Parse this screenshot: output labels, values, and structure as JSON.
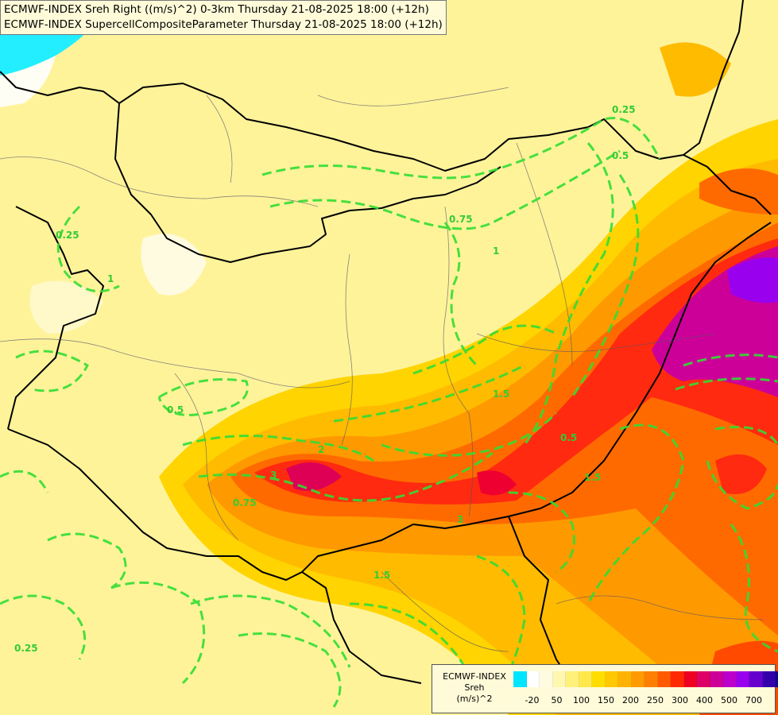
{
  "titles": {
    "line1": "ECMWF-INDEX Sreh Right ((m/s)^2) 0-3km Thursday 21-08-2025 18:00 (+12h)",
    "line2": "ECMWF-INDEX SupercellCompositeParameter Thursday 21-08-2025 18:00 (+12h)"
  },
  "legend": {
    "name_line1": "ECMWF-INDEX",
    "name_line2": "Sreh",
    "name_line3": "(m/s)^2",
    "colors": [
      "#00e5ff",
      "#ffffff",
      "#fffbe0",
      "#fff6b0",
      "#fff07a",
      "#ffe94a",
      "#ffdd00",
      "#ffc800",
      "#ffb300",
      "#ff9b00",
      "#ff7f00",
      "#ff5a00",
      "#ff2a00",
      "#ee0022",
      "#dd0066",
      "#cc0099",
      "#bb00cc",
      "#9900ee",
      "#6600cc",
      "#3300aa",
      "#0b0b8a"
    ],
    "ticks": [
      "-20",
      "50",
      "100",
      "150",
      "200",
      "250",
      "300",
      "400",
      "500",
      "700"
    ]
  },
  "contour_labels": [
    "0.25",
    "0.5",
    "0.75",
    "1",
    "1.5",
    "2",
    "3",
    "0.25",
    "0.5",
    "0.75",
    "1",
    "1.5",
    "3",
    "0.25",
    "0.5",
    "1.5"
  ]
}
